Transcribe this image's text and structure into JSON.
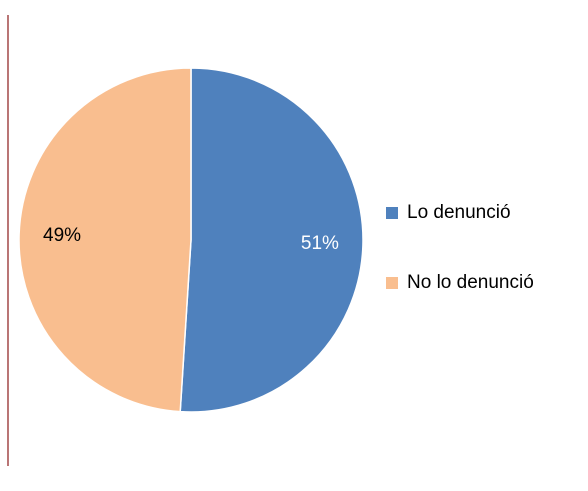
{
  "chart_data": {
    "type": "pie",
    "categories": [
      "Lo denunció",
      "No lo denunció"
    ],
    "values": [
      51,
      49
    ],
    "value_labels": [
      "51%",
      "49%"
    ],
    "colors": [
      "#4f81bd",
      "#f9be8f"
    ],
    "label_colors": [
      "#ffffff",
      "#000000"
    ],
    "legend": "right"
  }
}
